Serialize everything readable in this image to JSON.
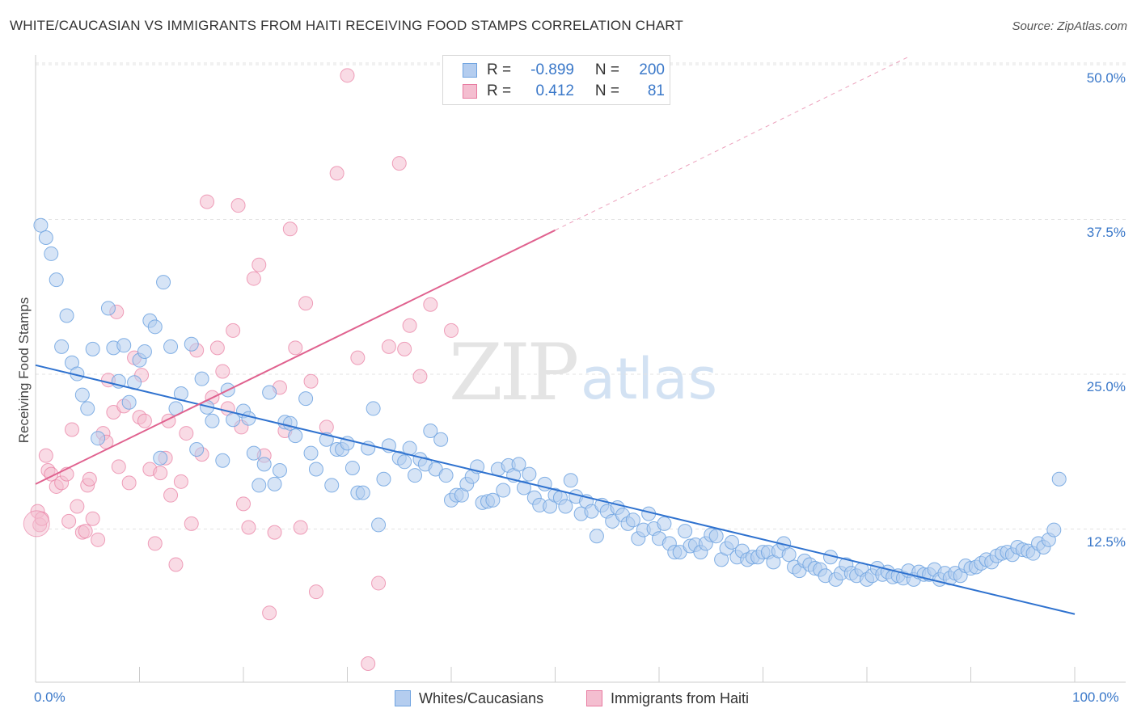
{
  "title": "WHITE/CAUCASIAN VS IMMIGRANTS FROM HAITI RECEIVING FOOD STAMPS CORRELATION CHART",
  "source": "Source: ZipAtlas.com",
  "watermark": {
    "zip": "ZIP",
    "atlas": "atlas"
  },
  "colors": {
    "blue": "#6fa3e0",
    "blue_fill": "#b4cdef",
    "pink": "#e87aa0",
    "pink_fill": "#f4bed0",
    "blue_line": "#2f72cf",
    "pink_line": "#e0628f",
    "tick_text": "#3a78c9"
  },
  "legend": {
    "r_label": "R =",
    "n_label": "N =",
    "rows": [
      {
        "r": "-0.899",
        "n": "200"
      },
      {
        "r": "0.412",
        "n": "81"
      }
    ]
  },
  "bottom_legend": [
    "Whites/Caucasians",
    "Immigrants from Haiti"
  ],
  "chart_data": {
    "type": "scatter",
    "title": "WHITE/CAUCASIAN VS IMMIGRANTS FROM HAITI RECEIVING FOOD STAMPS CORRELATION CHART",
    "xlabel": "",
    "ylabel": "Receiving Food Stamps",
    "xlim": [
      0,
      100
    ],
    "ylim": [
      0,
      50
    ],
    "x_tick_labels": [
      "0.0%",
      "100.0%"
    ],
    "y_ticks": [
      12.5,
      25.0,
      37.5,
      50.0
    ],
    "y_tick_labels": [
      "12.5%",
      "25.0%",
      "37.5%",
      "50.0%"
    ],
    "grid": "horizontal dashed",
    "legend_placement": "top-center",
    "series": [
      {
        "name": "Whites/Caucasians",
        "r": -0.899,
        "n": 200,
        "trend": {
          "x": [
            0,
            100
          ],
          "y": [
            25.6,
            5.5
          ]
        },
        "points": [
          [
            0.5,
            36.9
          ],
          [
            1,
            35.9
          ],
          [
            1.5,
            34.6
          ],
          [
            2,
            32.5
          ],
          [
            2.5,
            27.1
          ],
          [
            3,
            29.6
          ],
          [
            3.5,
            25.8
          ],
          [
            4,
            24.9
          ],
          [
            4.5,
            23.2
          ],
          [
            5,
            22.1
          ],
          [
            5.5,
            26.9
          ],
          [
            6,
            19.7
          ],
          [
            7,
            30.2
          ],
          [
            7.5,
            27
          ],
          [
            8,
            24.3
          ],
          [
            8.5,
            27.2
          ],
          [
            9,
            22.6
          ],
          [
            9.5,
            24.2
          ],
          [
            10,
            26
          ],
          [
            10.5,
            26.7
          ],
          [
            11,
            29.2
          ],
          [
            11.5,
            28.7
          ],
          [
            12,
            18.1
          ],
          [
            12.3,
            32.3
          ],
          [
            13,
            27.1
          ],
          [
            13.5,
            22.1
          ],
          [
            14,
            23.3
          ],
          [
            15,
            27.3
          ],
          [
            15.5,
            18.8
          ],
          [
            16,
            24.5
          ],
          [
            16.5,
            22.2
          ],
          [
            17,
            21.1
          ],
          [
            18,
            17.9
          ],
          [
            18.5,
            23.6
          ],
          [
            19,
            21.2
          ],
          [
            20,
            21.9
          ],
          [
            20.5,
            21.3
          ],
          [
            21,
            18.5
          ],
          [
            21.5,
            15.9
          ],
          [
            22,
            17.6
          ],
          [
            22.5,
            23.4
          ],
          [
            23,
            16
          ],
          [
            23.5,
            17.1
          ],
          [
            24,
            21
          ],
          [
            24.5,
            20.9
          ],
          [
            25,
            19.9
          ],
          [
            26,
            22.9
          ],
          [
            26.5,
            18.5
          ],
          [
            27,
            17.2
          ],
          [
            28,
            19.6
          ],
          [
            28.5,
            15.9
          ],
          [
            29,
            18.8
          ],
          [
            29.5,
            18.8
          ],
          [
            30,
            19.3
          ],
          [
            30.5,
            17.3
          ],
          [
            31,
            15.3
          ],
          [
            31.5,
            15.3
          ],
          [
            32,
            18.9
          ],
          [
            32.5,
            22.1
          ],
          [
            33,
            12.7
          ],
          [
            33.5,
            16.4
          ],
          [
            34,
            19.1
          ],
          [
            35,
            18.1
          ],
          [
            35.5,
            17.8
          ],
          [
            36,
            18.9
          ],
          [
            36.5,
            16.7
          ],
          [
            37,
            18
          ],
          [
            37.5,
            17.6
          ],
          [
            38,
            20.3
          ],
          [
            38.5,
            17.2
          ],
          [
            39,
            19.6
          ],
          [
            39.5,
            16.7
          ],
          [
            40,
            14.7
          ],
          [
            40.5,
            15.1
          ],
          [
            41,
            15.1
          ],
          [
            41.5,
            16
          ],
          [
            42,
            16.6
          ],
          [
            42.5,
            17.4
          ],
          [
            43,
            14.5
          ],
          [
            43.5,
            14.6
          ],
          [
            44,
            14.7
          ],
          [
            44.5,
            17.2
          ],
          [
            45,
            15.5
          ],
          [
            45.5,
            17.5
          ],
          [
            46,
            16.7
          ],
          [
            46.5,
            17.6
          ],
          [
            47,
            15.7
          ],
          [
            47.5,
            16.8
          ],
          [
            48,
            14.9
          ],
          [
            48.5,
            14.3
          ],
          [
            49,
            16
          ],
          [
            49.5,
            14.2
          ],
          [
            50,
            15.1
          ],
          [
            50.5,
            14.9
          ],
          [
            51,
            14.2
          ],
          [
            51.5,
            16.3
          ],
          [
            52,
            15
          ],
          [
            52.5,
            13.6
          ],
          [
            53,
            14.6
          ],
          [
            53.5,
            13.8
          ],
          [
            54,
            11.8
          ],
          [
            54.5,
            14.3
          ],
          [
            55,
            13.8
          ],
          [
            55.5,
            13
          ],
          [
            56,
            14.1
          ],
          [
            56.5,
            13.5
          ],
          [
            57,
            12.8
          ],
          [
            57.5,
            13.1
          ],
          [
            58,
            11.6
          ],
          [
            58.5,
            12.3
          ],
          [
            59,
            13.6
          ],
          [
            59.5,
            12.4
          ],
          [
            60,
            11.6
          ],
          [
            60.5,
            12.8
          ],
          [
            61,
            11.2
          ],
          [
            61.5,
            10.5
          ],
          [
            62,
            10.5
          ],
          [
            62.5,
            12.2
          ],
          [
            63,
            11
          ],
          [
            63.5,
            11.1
          ],
          [
            64,
            10.5
          ],
          [
            64.5,
            11.2
          ],
          [
            65,
            11.9
          ],
          [
            65.5,
            11.8
          ],
          [
            66,
            9.9
          ],
          [
            66.5,
            10.8
          ],
          [
            67,
            11.3
          ],
          [
            67.5,
            10.1
          ],
          [
            68,
            10.6
          ],
          [
            68.5,
            9.9
          ],
          [
            69,
            10.1
          ],
          [
            69.5,
            10.1
          ],
          [
            70,
            10.5
          ],
          [
            70.5,
            10.5
          ],
          [
            71,
            9.7
          ],
          [
            71.5,
            10.6
          ],
          [
            72,
            11.2
          ],
          [
            72.5,
            10.3
          ],
          [
            73,
            9.3
          ],
          [
            73.5,
            9
          ],
          [
            74,
            9.8
          ],
          [
            74.5,
            9.5
          ],
          [
            75,
            9.2
          ],
          [
            75.5,
            9.1
          ],
          [
            76,
            8.6
          ],
          [
            76.5,
            10.1
          ],
          [
            77,
            8.3
          ],
          [
            77.5,
            8.8
          ],
          [
            78,
            9.5
          ],
          [
            78.5,
            8.8
          ],
          [
            79,
            8.6
          ],
          [
            79.5,
            9.1
          ],
          [
            80,
            8.3
          ],
          [
            80.5,
            8.6
          ],
          [
            81,
            9.2
          ],
          [
            81.5,
            8.7
          ],
          [
            82,
            8.9
          ],
          [
            82.5,
            8.5
          ],
          [
            83,
            8.6
          ],
          [
            83.5,
            8.4
          ],
          [
            84,
            9
          ],
          [
            84.5,
            8.3
          ],
          [
            85,
            8.9
          ],
          [
            85.5,
            8.7
          ],
          [
            86,
            8.7
          ],
          [
            86.5,
            9.1
          ],
          [
            87,
            8.3
          ],
          [
            87.5,
            8.8
          ],
          [
            88,
            8.4
          ],
          [
            88.5,
            8.8
          ],
          [
            89,
            8.6
          ],
          [
            89.5,
            9.4
          ],
          [
            90,
            9.2
          ],
          [
            90.5,
            9.3
          ],
          [
            91,
            9.6
          ],
          [
            91.5,
            9.9
          ],
          [
            92,
            9.7
          ],
          [
            92.5,
            10.2
          ],
          [
            93,
            10.4
          ],
          [
            93.5,
            10.5
          ],
          [
            94,
            10.3
          ],
          [
            94.5,
            10.9
          ],
          [
            95,
            10.7
          ],
          [
            95.5,
            10.6
          ],
          [
            96,
            10.4
          ],
          [
            96.5,
            11.2
          ],
          [
            97,
            10.9
          ],
          [
            97.5,
            11.5
          ],
          [
            98,
            12.3
          ],
          [
            98.5,
            16.4
          ]
        ]
      },
      {
        "name": "Immigrants from Haiti",
        "r": 0.412,
        "n": 81,
        "trend": {
          "x": [
            0,
            50
          ],
          "y": [
            16,
            36.5
          ]
        },
        "trend_extended": {
          "x": [
            50,
            84
          ],
          "y": [
            36.5,
            50.5
          ]
        },
        "points": [
          [
            0.2,
            13.8
          ],
          [
            0.4,
            12.7
          ],
          [
            0.6,
            13.2
          ],
          [
            1,
            18.3
          ],
          [
            1.2,
            17.1
          ],
          [
            1.5,
            16.8
          ],
          [
            2,
            15.8
          ],
          [
            2.5,
            16.1
          ],
          [
            3,
            16.8
          ],
          [
            3.2,
            13
          ],
          [
            3.5,
            20.4
          ],
          [
            4,
            14.2
          ],
          [
            4.5,
            12.1
          ],
          [
            4.8,
            12.2
          ],
          [
            5,
            15.9
          ],
          [
            5.2,
            16.4
          ],
          [
            5.5,
            13.2
          ],
          [
            6,
            11.5
          ],
          [
            6.5,
            20.1
          ],
          [
            6.8,
            19.4
          ],
          [
            7,
            24.4
          ],
          [
            7.5,
            21.8
          ],
          [
            7.8,
            29.9
          ],
          [
            8,
            17.4
          ],
          [
            8.5,
            22.3
          ],
          [
            9,
            16.1
          ],
          [
            9.5,
            26.2
          ],
          [
            10,
            21.4
          ],
          [
            10.2,
            24.8
          ],
          [
            10.5,
            21.1
          ],
          [
            11,
            17.2
          ],
          [
            11.5,
            11.2
          ],
          [
            12,
            16.9
          ],
          [
            12.5,
            18.1
          ],
          [
            12.8,
            21.1
          ],
          [
            13,
            15.1
          ],
          [
            13.5,
            9.5
          ],
          [
            14,
            16.2
          ],
          [
            14.5,
            20.1
          ],
          [
            15,
            12.8
          ],
          [
            15.5,
            26.8
          ],
          [
            16,
            18.4
          ],
          [
            16.5,
            38.8
          ],
          [
            17,
            23
          ],
          [
            17.5,
            27
          ],
          [
            18,
            25.1
          ],
          [
            18.5,
            22.1
          ],
          [
            19,
            28.4
          ],
          [
            19.5,
            38.5
          ],
          [
            19.8,
            20.6
          ],
          [
            20,
            14.4
          ],
          [
            20.5,
            12.5
          ],
          [
            21,
            32.6
          ],
          [
            21.5,
            33.7
          ],
          [
            22,
            18.3
          ],
          [
            22.5,
            5.6
          ],
          [
            23,
            12.1
          ],
          [
            23.5,
            23.8
          ],
          [
            24,
            20.3
          ],
          [
            24.5,
            36.6
          ],
          [
            25,
            27
          ],
          [
            25.5,
            12.5
          ],
          [
            26,
            30.6
          ],
          [
            26.5,
            24.3
          ],
          [
            27,
            7.3
          ],
          [
            28,
            20.6
          ],
          [
            29,
            41.1
          ],
          [
            30,
            49
          ],
          [
            31,
            26.2
          ],
          [
            32,
            1.5
          ],
          [
            33,
            8
          ],
          [
            34,
            27.1
          ],
          [
            35,
            41.9
          ],
          [
            35.5,
            26.9
          ],
          [
            36,
            28.8
          ],
          [
            37,
            24.7
          ],
          [
            38,
            30.5
          ],
          [
            40,
            28.4
          ]
        ]
      }
    ]
  }
}
